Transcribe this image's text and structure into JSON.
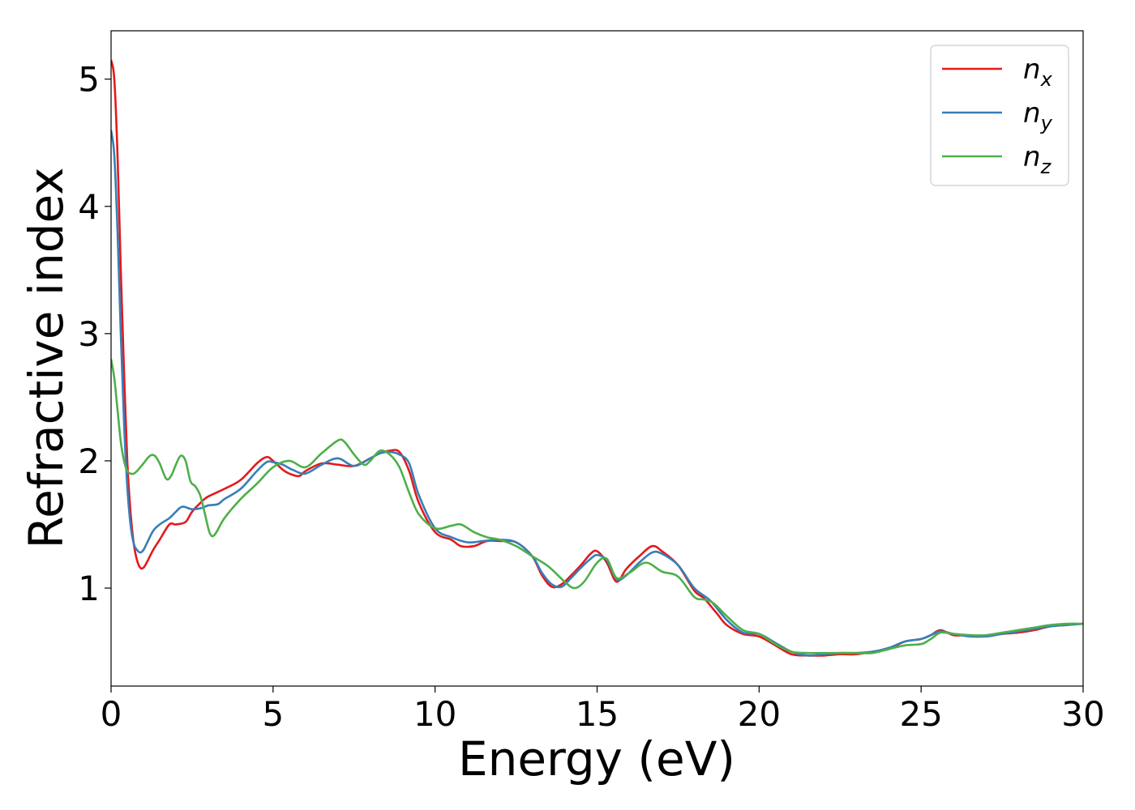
{
  "chart_data": {
    "type": "line",
    "title": "",
    "xlabel": "Energy (eV)",
    "ylabel": "Refractive index",
    "xlim": [
      0,
      30
    ],
    "ylim": [
      0.23,
      5.38
    ],
    "xticks": [
      0,
      5,
      10,
      15,
      20,
      25,
      30
    ],
    "yticks": [
      1,
      2,
      3,
      4,
      5
    ],
    "grid": false,
    "legend_position": "top-right",
    "series": [
      {
        "name": "n",
        "subscript": "x",
        "color": "#e41a1c",
        "x": [
          0,
          0.1,
          0.2,
          0.3,
          0.4,
          0.5,
          0.6,
          0.7,
          0.8,
          0.9,
          1.0,
          1.1,
          1.3,
          1.5,
          1.8,
          2.0,
          2.3,
          2.5,
          2.8,
          3.0,
          3.5,
          4.0,
          4.5,
          4.8,
          5.0,
          5.3,
          5.5,
          5.8,
          6.0,
          6.5,
          7.0,
          7.5,
          8.0,
          8.3,
          8.6,
          8.9,
          9.2,
          9.5,
          10.0,
          10.5,
          10.8,
          11.2,
          11.6,
          12.0,
          12.5,
          13.0,
          13.3,
          13.6,
          13.9,
          14.2,
          14.5,
          14.8,
          15.0,
          15.3,
          15.6,
          15.9,
          16.3,
          16.7,
          17.0,
          17.5,
          18.0,
          18.3,
          18.7,
          19.0,
          19.5,
          20.0,
          20.5,
          21.0,
          21.5,
          22.0,
          22.5,
          23.0,
          23.5,
          24.0,
          24.5,
          25.0,
          25.3,
          25.6,
          26.0,
          26.5,
          27.0,
          27.5,
          28.0,
          28.5,
          29.0,
          29.5,
          30.0
        ],
        "y": [
          5.15,
          5.0,
          4.4,
          3.5,
          2.7,
          2.0,
          1.6,
          1.35,
          1.22,
          1.16,
          1.16,
          1.2,
          1.3,
          1.38,
          1.5,
          1.5,
          1.52,
          1.6,
          1.68,
          1.72,
          1.78,
          1.85,
          1.98,
          2.03,
          2.0,
          1.93,
          1.9,
          1.88,
          1.92,
          1.98,
          1.97,
          1.96,
          2.02,
          2.06,
          2.08,
          2.07,
          1.92,
          1.67,
          1.44,
          1.38,
          1.33,
          1.33,
          1.37,
          1.37,
          1.36,
          1.25,
          1.1,
          1.01,
          1.03,
          1.1,
          1.18,
          1.27,
          1.29,
          1.2,
          1.05,
          1.15,
          1.25,
          1.33,
          1.29,
          1.18,
          0.98,
          0.92,
          0.8,
          0.71,
          0.64,
          0.62,
          0.55,
          0.48,
          0.47,
          0.47,
          0.48,
          0.48,
          0.5,
          0.52,
          0.58,
          0.6,
          0.63,
          0.67,
          0.63,
          0.63,
          0.62,
          0.64,
          0.65,
          0.67,
          0.7,
          0.71,
          0.72
        ]
      },
      {
        "name": "n",
        "subscript": "y",
        "color": "#377eb8",
        "x": [
          0,
          0.1,
          0.2,
          0.3,
          0.4,
          0.5,
          0.6,
          0.7,
          0.8,
          0.9,
          1.0,
          1.1,
          1.3,
          1.5,
          1.8,
          2.0,
          2.2,
          2.5,
          2.8,
          3.0,
          3.3,
          3.5,
          4.0,
          4.5,
          4.8,
          5.0,
          5.3,
          5.6,
          6.0,
          6.5,
          7.0,
          7.5,
          8.0,
          8.3,
          8.6,
          8.9,
          9.2,
          9.5,
          10.0,
          10.5,
          11.0,
          11.5,
          12.0,
          12.5,
          13.0,
          13.3,
          13.6,
          13.9,
          14.2,
          14.5,
          14.8,
          15.0,
          15.3,
          15.6,
          15.9,
          16.3,
          16.7,
          17.0,
          17.5,
          18.0,
          18.5,
          19.0,
          19.5,
          20.0,
          20.5,
          21.0,
          21.5,
          22.0,
          22.5,
          23.0,
          23.5,
          24.0,
          24.5,
          25.0,
          25.3,
          25.6,
          26.0,
          26.5,
          27.0,
          27.5,
          28.0,
          28.5,
          29.0,
          29.5,
          30.0
        ],
        "y": [
          4.6,
          4.4,
          3.8,
          3.0,
          2.3,
          1.8,
          1.5,
          1.35,
          1.3,
          1.28,
          1.3,
          1.35,
          1.45,
          1.5,
          1.55,
          1.6,
          1.64,
          1.62,
          1.63,
          1.65,
          1.66,
          1.7,
          1.78,
          1.92,
          1.99,
          1.99,
          1.97,
          1.93,
          1.9,
          1.97,
          2.02,
          1.96,
          2.02,
          2.06,
          2.07,
          2.05,
          1.98,
          1.73,
          1.47,
          1.4,
          1.36,
          1.37,
          1.38,
          1.36,
          1.25,
          1.12,
          1.03,
          1.01,
          1.08,
          1.16,
          1.23,
          1.26,
          1.22,
          1.07,
          1.1,
          1.2,
          1.28,
          1.27,
          1.18,
          1.0,
          0.9,
          0.75,
          0.65,
          0.64,
          0.57,
          0.5,
          0.47,
          0.48,
          0.49,
          0.49,
          0.5,
          0.53,
          0.58,
          0.6,
          0.63,
          0.66,
          0.64,
          0.62,
          0.62,
          0.64,
          0.66,
          0.68,
          0.7,
          0.71,
          0.72
        ]
      },
      {
        "name": "n",
        "subscript": "z",
        "color": "#4daf4a",
        "x": [
          0,
          0.1,
          0.2,
          0.3,
          0.4,
          0.5,
          0.6,
          0.7,
          0.8,
          1.0,
          1.2,
          1.35,
          1.5,
          1.7,
          1.85,
          2.0,
          2.15,
          2.3,
          2.45,
          2.6,
          2.75,
          2.9,
          3.05,
          3.2,
          3.5,
          4.0,
          4.5,
          5.0,
          5.5,
          6.0,
          6.5,
          7.0,
          7.2,
          7.5,
          7.8,
          8.0,
          8.3,
          8.6,
          8.9,
          9.2,
          9.5,
          10.0,
          10.5,
          10.8,
          11.2,
          11.6,
          12.0,
          12.5,
          13.0,
          13.5,
          14.0,
          14.3,
          14.6,
          15.0,
          15.3,
          15.6,
          16.0,
          16.5,
          17.0,
          17.5,
          18.0,
          18.3,
          18.6,
          19.0,
          19.5,
          20.0,
          20.5,
          21.0,
          21.5,
          22.0,
          22.5,
          23.0,
          23.5,
          24.0,
          24.5,
          25.0,
          25.3,
          25.6,
          26.0,
          26.5,
          27.0,
          27.5,
          28.0,
          28.5,
          29.0,
          29.5,
          30.0
        ],
        "y": [
          2.8,
          2.65,
          2.4,
          2.15,
          2.0,
          1.92,
          1.9,
          1.9,
          1.92,
          1.98,
          2.04,
          2.04,
          1.98,
          1.86,
          1.88,
          1.97,
          2.04,
          2.0,
          1.84,
          1.8,
          1.73,
          1.58,
          1.43,
          1.42,
          1.55,
          1.7,
          1.82,
          1.95,
          2.0,
          1.95,
          2.06,
          2.16,
          2.15,
          2.05,
          1.97,
          2.0,
          2.08,
          2.05,
          1.95,
          1.75,
          1.58,
          1.47,
          1.49,
          1.5,
          1.44,
          1.4,
          1.38,
          1.33,
          1.25,
          1.17,
          1.05,
          1.0,
          1.05,
          1.2,
          1.23,
          1.08,
          1.12,
          1.2,
          1.13,
          1.09,
          0.93,
          0.91,
          0.88,
          0.78,
          0.67,
          0.64,
          0.56,
          0.5,
          0.49,
          0.49,
          0.49,
          0.49,
          0.49,
          0.52,
          0.55,
          0.56,
          0.6,
          0.65,
          0.64,
          0.63,
          0.63,
          0.65,
          0.67,
          0.69,
          0.71,
          0.72,
          0.72
        ]
      }
    ]
  }
}
